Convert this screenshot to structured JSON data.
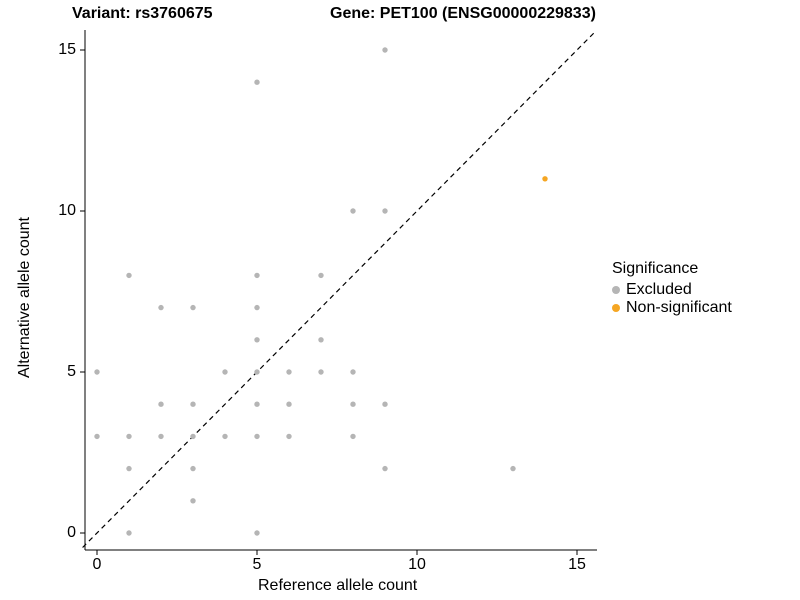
{
  "title": {
    "variant": "Variant: rs3760675",
    "gene": "Gene: PET100 (ENSG00000229833)"
  },
  "axes": {
    "x_label": "Reference allele count",
    "y_label": "Alternative allele count",
    "x_ticks": [
      0,
      5,
      10,
      15
    ],
    "y_ticks": [
      0,
      5,
      10,
      15
    ]
  },
  "legend": {
    "title": "Significance",
    "items": [
      {
        "label": "Excluded",
        "color": "#b5b5b5"
      },
      {
        "label": "Non-significant",
        "color": "#F5A623"
      }
    ]
  },
  "chart_data": {
    "type": "scatter",
    "title": "Variant: rs3760675 — Gene: PET100 (ENSG00000229833)",
    "xlabel": "Reference allele count",
    "ylabel": "Alternative allele count",
    "xlim": [
      -0.45,
      15.6
    ],
    "ylim": [
      -0.55,
      15.6
    ],
    "grid": false,
    "legend_position": "right",
    "reference_line": {
      "style": "dashed",
      "equation": "y = x",
      "color": "#000000"
    },
    "series": [
      {
        "name": "Excluded",
        "color": "#b5b5b5",
        "points": [
          [
            0,
            3
          ],
          [
            0,
            5
          ],
          [
            1,
            0
          ],
          [
            1,
            2
          ],
          [
            1,
            3
          ],
          [
            1,
            8
          ],
          [
            2,
            3
          ],
          [
            2,
            4
          ],
          [
            2,
            7
          ],
          [
            3,
            1
          ],
          [
            3,
            2
          ],
          [
            3,
            3
          ],
          [
            3,
            4
          ],
          [
            3,
            7
          ],
          [
            4,
            3
          ],
          [
            4,
            5
          ],
          [
            5,
            0
          ],
          [
            5,
            3
          ],
          [
            5,
            4
          ],
          [
            5,
            5
          ],
          [
            5,
            6
          ],
          [
            5,
            7
          ],
          [
            5,
            8
          ],
          [
            5,
            14
          ],
          [
            6,
            3
          ],
          [
            6,
            4
          ],
          [
            6,
            5
          ],
          [
            7,
            5
          ],
          [
            7,
            6
          ],
          [
            7,
            8
          ],
          [
            8,
            3
          ],
          [
            8,
            4
          ],
          [
            8,
            5
          ],
          [
            8,
            10
          ],
          [
            9,
            2
          ],
          [
            9,
            4
          ],
          [
            9,
            10
          ],
          [
            9,
            15
          ],
          [
            13,
            2
          ]
        ]
      },
      {
        "name": "Non-significant",
        "color": "#F5A623",
        "points": [
          [
            14,
            11
          ]
        ]
      }
    ]
  }
}
